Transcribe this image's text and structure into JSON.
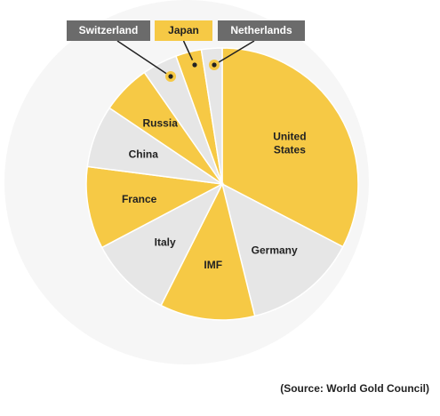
{
  "chart_data": {
    "type": "pie",
    "slices": [
      {
        "label": "United States",
        "value": 8133,
        "color": "#f6c945",
        "text_color": "#222222"
      },
      {
        "label": "Germany",
        "value": 3366,
        "color": "#e6e6e6",
        "text_color": "#222222"
      },
      {
        "label": "IMF",
        "value": 2814,
        "color": "#f6c945",
        "text_color": "#222222"
      },
      {
        "label": "Italy",
        "value": 2452,
        "color": "#e6e6e6",
        "text_color": "#222222"
      },
      {
        "label": "France",
        "value": 2436,
        "color": "#f6c945",
        "text_color": "#222222"
      },
      {
        "label": "China",
        "value": 1842,
        "color": "#e6e6e6",
        "text_color": "#222222"
      },
      {
        "label": "Russia",
        "value": 1460,
        "color": "#f6c945",
        "text_color": "#222222"
      },
      {
        "label": "Switzerland",
        "value": 1040,
        "color": "#e6e6e6",
        "text_color": "#ffffff"
      },
      {
        "label": "Japan",
        "value": 765,
        "color": "#f6c945",
        "text_color": "#222222"
      },
      {
        "label": "Netherlands",
        "value": 612,
        "color": "#e6e6e6",
        "text_color": "#ffffff"
      }
    ],
    "callout_colors": {
      "gray": "#6b6b6b",
      "yellow": "#f6c945",
      "dot": "#222222"
    }
  },
  "source_note": "(Source: World Gold Council)"
}
